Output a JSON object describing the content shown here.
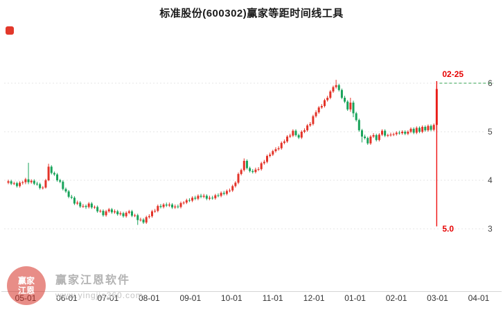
{
  "title": "标准股份(600302)赢家等距时间线工具",
  "watermark": {
    "logo_text": "赢家江恩",
    "brand": "赢家江恩软件",
    "url": "www.yingjia360.com"
  },
  "chart_data": {
    "type": "candlestick",
    "title": "标准股份(600302)赢家等距时间线工具",
    "x_axis_labels": [
      "05-01",
      "06-01",
      "07-01",
      "08-01",
      "09-01",
      "10-01",
      "11-01",
      "12-01",
      "01-01",
      "02-01",
      "03-01",
      "04-01"
    ],
    "yticks": [
      6,
      5,
      4,
      3
    ],
    "ylim": [
      2.95,
      6.2
    ],
    "grid": "dotted-horizontal",
    "legend": "none",
    "up_color": "#e33328",
    "down_color": "#18a35a",
    "axis_label_color": "#333333",
    "annotations": {
      "vline_date_label": "02-25",
      "vline_bottom_label": "5.0",
      "vline_color": "#ee1010",
      "vline_bottom_price": 3.05,
      "hline_level": 6.0,
      "hline_color": "#2fa04c",
      "label_color": "#e60000"
    },
    "ohlc": [
      [
        3.95,
        4.01,
        3.92,
        3.98
      ],
      [
        3.98,
        4.01,
        3.9,
        3.93
      ],
      [
        3.93,
        3.97,
        3.9,
        3.94
      ],
      [
        3.94,
        3.97,
        3.85,
        3.88
      ],
      [
        3.88,
        3.98,
        3.85,
        3.95
      ],
      [
        3.95,
        3.99,
        3.91,
        3.96
      ],
      [
        3.96,
        4.05,
        3.92,
        4.02
      ],
      [
        4.02,
        4.36,
        3.92,
        3.96
      ],
      [
        3.96,
        4.02,
        3.93,
        3.99
      ],
      [
        3.99,
        4.02,
        3.9,
        3.93
      ],
      [
        3.93,
        3.97,
        3.89,
        3.92
      ],
      [
        3.92,
        3.95,
        3.81,
        3.84
      ],
      [
        3.84,
        3.88,
        3.81,
        3.85
      ],
      [
        3.85,
        4.03,
        3.83,
        4.0
      ],
      [
        4.0,
        4.34,
        3.98,
        4.28
      ],
      [
        4.28,
        4.31,
        4.12,
        4.15
      ],
      [
        4.15,
        4.18,
        4.09,
        4.12
      ],
      [
        4.12,
        4.15,
        3.97,
        4.0
      ],
      [
        4.0,
        4.03,
        3.94,
        3.97
      ],
      [
        3.97,
        4.0,
        3.79,
        3.82
      ],
      [
        3.82,
        3.85,
        3.74,
        3.77
      ],
      [
        3.77,
        3.8,
        3.63,
        3.66
      ],
      [
        3.66,
        3.7,
        3.61,
        3.64
      ],
      [
        3.64,
        3.67,
        3.49,
        3.52
      ],
      [
        3.52,
        3.58,
        3.49,
        3.54
      ],
      [
        3.54,
        3.57,
        3.43,
        3.46
      ],
      [
        3.46,
        3.51,
        3.43,
        3.47
      ],
      [
        3.47,
        3.5,
        3.41,
        3.45
      ],
      [
        3.45,
        3.55,
        3.42,
        3.52
      ],
      [
        3.52,
        3.55,
        3.41,
        3.44
      ],
      [
        3.44,
        3.48,
        3.41,
        3.45
      ],
      [
        3.45,
        3.48,
        3.33,
        3.36
      ],
      [
        3.36,
        3.4,
        3.33,
        3.37
      ],
      [
        3.37,
        3.4,
        3.25,
        3.28
      ],
      [
        3.28,
        3.39,
        3.25,
        3.36
      ],
      [
        3.36,
        3.43,
        3.33,
        3.4
      ],
      [
        3.4,
        3.43,
        3.31,
        3.34
      ],
      [
        3.34,
        3.4,
        3.31,
        3.36
      ],
      [
        3.36,
        3.39,
        3.27,
        3.3
      ],
      [
        3.3,
        3.36,
        3.27,
        3.32
      ],
      [
        3.32,
        3.35,
        3.23,
        3.26
      ],
      [
        3.26,
        3.36,
        3.23,
        3.33
      ],
      [
        3.33,
        3.39,
        3.3,
        3.36
      ],
      [
        3.36,
        3.39,
        3.24,
        3.27
      ],
      [
        3.27,
        3.31,
        3.24,
        3.28
      ],
      [
        3.28,
        3.31,
        3.08,
        3.18
      ],
      [
        3.18,
        3.23,
        3.15,
        3.19
      ],
      [
        3.19,
        3.22,
        3.1,
        3.13
      ],
      [
        3.13,
        3.27,
        3.1,
        3.24
      ],
      [
        3.24,
        3.3,
        3.21,
        3.26
      ],
      [
        3.26,
        3.39,
        3.23,
        3.36
      ],
      [
        3.36,
        3.41,
        3.33,
        3.37
      ],
      [
        3.37,
        3.5,
        3.34,
        3.47
      ],
      [
        3.47,
        3.51,
        3.42,
        3.45
      ],
      [
        3.45,
        3.53,
        3.42,
        3.5
      ],
      [
        3.5,
        3.54,
        3.45,
        3.48
      ],
      [
        3.48,
        3.54,
        3.45,
        3.5
      ],
      [
        3.5,
        3.53,
        3.41,
        3.44
      ],
      [
        3.44,
        3.5,
        3.41,
        3.46
      ],
      [
        3.46,
        3.5,
        3.42,
        3.45
      ],
      [
        3.45,
        3.56,
        3.42,
        3.53
      ],
      [
        3.53,
        3.57,
        3.5,
        3.54
      ],
      [
        3.54,
        3.62,
        3.51,
        3.59
      ],
      [
        3.59,
        3.63,
        3.55,
        3.58
      ],
      [
        3.58,
        3.67,
        3.55,
        3.64
      ],
      [
        3.64,
        3.68,
        3.59,
        3.62
      ],
      [
        3.62,
        3.71,
        3.59,
        3.68
      ],
      [
        3.68,
        3.72,
        3.63,
        3.66
      ],
      [
        3.66,
        3.72,
        3.63,
        3.68
      ],
      [
        3.68,
        3.71,
        3.59,
        3.62
      ],
      [
        3.62,
        3.68,
        3.59,
        3.64
      ],
      [
        3.64,
        3.68,
        3.6,
        3.63
      ],
      [
        3.63,
        3.72,
        3.6,
        3.69
      ],
      [
        3.69,
        3.73,
        3.65,
        3.68
      ],
      [
        3.68,
        3.77,
        3.65,
        3.74
      ],
      [
        3.74,
        3.78,
        3.69,
        3.72
      ],
      [
        3.72,
        3.81,
        3.69,
        3.78
      ],
      [
        3.78,
        3.83,
        3.75,
        3.79
      ],
      [
        3.79,
        3.91,
        3.76,
        3.88
      ],
      [
        3.88,
        3.98,
        3.85,
        3.95
      ],
      [
        3.95,
        4.16,
        3.92,
        4.13
      ],
      [
        4.13,
        4.24,
        4.1,
        4.21
      ],
      [
        4.21,
        4.45,
        4.18,
        4.4
      ],
      [
        4.4,
        4.43,
        4.22,
        4.25
      ],
      [
        4.25,
        4.28,
        4.16,
        4.19
      ],
      [
        4.19,
        4.23,
        4.14,
        4.17
      ],
      [
        4.17,
        4.26,
        4.14,
        4.22
      ],
      [
        4.22,
        4.27,
        4.19,
        4.23
      ],
      [
        4.23,
        4.38,
        4.2,
        4.35
      ],
      [
        4.35,
        4.42,
        4.32,
        4.38
      ],
      [
        4.38,
        4.53,
        4.35,
        4.5
      ],
      [
        4.5,
        4.57,
        4.47,
        4.53
      ],
      [
        4.53,
        4.63,
        4.5,
        4.6
      ],
      [
        4.6,
        4.68,
        4.57,
        4.64
      ],
      [
        4.64,
        4.7,
        4.61,
        4.66
      ],
      [
        4.66,
        4.8,
        4.63,
        4.77
      ],
      [
        4.77,
        4.84,
        4.74,
        4.8
      ],
      [
        4.8,
        4.93,
        4.77,
        4.9
      ],
      [
        4.9,
        4.96,
        4.87,
        4.92
      ],
      [
        4.92,
        5.05,
        4.89,
        5.02
      ],
      [
        5.02,
        5.05,
        4.9,
        4.93
      ],
      [
        4.93,
        4.96,
        4.85,
        4.88
      ],
      [
        4.88,
        5.03,
        4.85,
        5.0
      ],
      [
        5.0,
        5.07,
        4.97,
        5.03
      ],
      [
        5.03,
        5.16,
        5.0,
        5.13
      ],
      [
        5.13,
        5.2,
        5.1,
        5.16
      ],
      [
        5.16,
        5.35,
        5.13,
        5.32
      ],
      [
        5.32,
        5.44,
        5.29,
        5.4
      ],
      [
        5.4,
        5.53,
        5.37,
        5.5
      ],
      [
        5.5,
        5.57,
        5.47,
        5.53
      ],
      [
        5.53,
        5.68,
        5.5,
        5.65
      ],
      [
        5.65,
        5.74,
        5.62,
        5.7
      ],
      [
        5.7,
        5.86,
        5.67,
        5.83
      ],
      [
        5.83,
        5.95,
        5.8,
        5.92
      ],
      [
        5.92,
        6.07,
        5.89,
        5.96
      ],
      [
        5.96,
        5.99,
        5.83,
        5.86
      ],
      [
        5.86,
        5.89,
        5.67,
        5.7
      ],
      [
        5.7,
        5.74,
        5.59,
        5.62
      ],
      [
        5.62,
        5.65,
        5.43,
        5.46
      ],
      [
        5.46,
        5.7,
        5.41,
        5.6
      ],
      [
        5.6,
        5.64,
        5.3,
        5.38
      ],
      [
        5.38,
        5.41,
        5.21,
        5.24
      ],
      [
        5.24,
        5.27,
        5.0,
        5.03
      ],
      [
        5.03,
        5.06,
        4.78,
        4.9
      ],
      [
        4.9,
        4.94,
        4.84,
        4.87
      ],
      [
        4.87,
        4.9,
        4.73,
        4.76
      ],
      [
        4.76,
        4.93,
        4.73,
        4.9
      ],
      [
        4.9,
        4.97,
        4.87,
        4.93
      ],
      [
        4.93,
        4.96,
        4.8,
        4.83
      ],
      [
        4.83,
        4.97,
        4.8,
        4.94
      ],
      [
        4.94,
        5.05,
        4.91,
        5.02
      ],
      [
        5.02,
        5.05,
        4.89,
        4.92
      ],
      [
        4.92,
        4.96,
        4.89,
        4.93
      ],
      [
        4.93,
        4.98,
        4.9,
        4.94
      ],
      [
        4.94,
        4.98,
        4.91,
        4.95
      ],
      [
        4.95,
        5.01,
        4.92,
        4.98
      ],
      [
        4.98,
        5.02,
        4.94,
        4.97
      ],
      [
        4.97,
        5.03,
        4.94,
        5.0
      ],
      [
        5.0,
        5.03,
        4.93,
        4.96
      ],
      [
        4.96,
        5.03,
        4.93,
        5.0
      ],
      [
        5.0,
        5.09,
        4.97,
        5.06
      ],
      [
        5.06,
        5.09,
        4.95,
        4.98
      ],
      [
        4.98,
        5.11,
        4.95,
        5.08
      ],
      [
        5.08,
        5.11,
        4.97,
        5.0
      ],
      [
        5.0,
        5.13,
        4.97,
        5.1
      ],
      [
        5.1,
        5.13,
        5.0,
        5.03
      ],
      [
        5.03,
        5.15,
        5.0,
        5.12
      ],
      [
        5.12,
        5.15,
        5.01,
        5.04
      ],
      [
        5.04,
        5.17,
        5.01,
        5.14
      ],
      [
        5.14,
        5.95,
        5.08,
        5.88
      ]
    ]
  }
}
